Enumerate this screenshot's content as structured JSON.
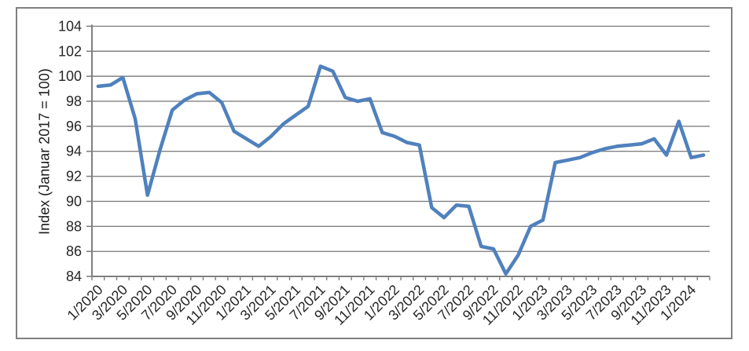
{
  "chart_data": {
    "type": "line",
    "title": "",
    "xlabel": "",
    "ylabel": "Index (Januar 2017 = 100)",
    "ylim": [
      84,
      104
    ],
    "y_ticks": [
      84,
      86,
      88,
      90,
      92,
      94,
      96,
      98,
      100,
      102,
      104
    ],
    "grid": "horizontal",
    "legend_position": "none",
    "x_tick_labels": [
      "1/2020",
      "3/2020",
      "5/2020",
      "7/2020",
      "9/2020",
      "11/2020",
      "1/2021",
      "3/2021",
      "5/2021",
      "7/2021",
      "9/2021",
      "11/2021",
      "1/2022",
      "3/2022",
      "5/2022",
      "7/2022",
      "9/2022",
      "11/2022",
      "1/2023",
      "3/2023",
      "5/2023",
      "7/2023",
      "9/2023",
      "11/2023",
      "1/2024"
    ],
    "x": [
      "1/2020",
      "2/2020",
      "3/2020",
      "4/2020",
      "5/2020",
      "6/2020",
      "7/2020",
      "8/2020",
      "9/2020",
      "10/2020",
      "11/2020",
      "12/2020",
      "1/2021",
      "2/2021",
      "3/2021",
      "4/2021",
      "5/2021",
      "6/2021",
      "7/2021",
      "8/2021",
      "9/2021",
      "10/2021",
      "11/2021",
      "12/2021",
      "1/2022",
      "2/2022",
      "3/2022",
      "4/2022",
      "5/2022",
      "6/2022",
      "7/2022",
      "8/2022",
      "9/2022",
      "10/2022",
      "11/2022",
      "12/2022",
      "1/2023",
      "2/2023",
      "3/2023",
      "4/2023",
      "5/2023",
      "6/2023",
      "7/2023",
      "8/2023",
      "9/2023",
      "10/2023",
      "11/2023",
      "12/2023",
      "1/2024",
      "2/2024"
    ],
    "series": [
      {
        "name": "Index",
        "color": "#4F81BD",
        "values": [
          99.2,
          99.3,
          99.9,
          96.6,
          90.5,
          94.1,
          97.3,
          98.1,
          98.6,
          98.7,
          97.9,
          95.6,
          95.0,
          94.4,
          95.2,
          96.2,
          96.9,
          97.6,
          100.8,
          100.4,
          98.3,
          98.0,
          98.2,
          95.5,
          95.2,
          94.7,
          94.5,
          89.5,
          88.7,
          89.7,
          89.6,
          86.4,
          86.2,
          84.2,
          85.7,
          88.0,
          88.5,
          93.1,
          93.3,
          93.5,
          93.9,
          94.2,
          94.4,
          94.5,
          94.6,
          95.0,
          93.7,
          96.4,
          93.5,
          93.7
        ]
      }
    ]
  },
  "frame": {
    "background": "#ffffff",
    "border_color": "#808080",
    "gridline_color": "#808080",
    "axis_color": "#808080",
    "text_color": "#262626"
  }
}
